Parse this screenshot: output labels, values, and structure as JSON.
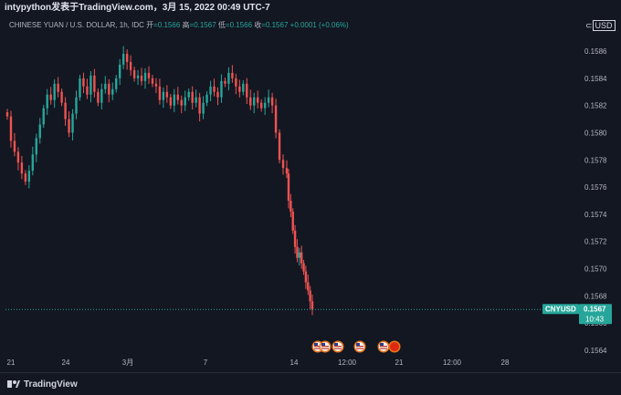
{
  "header": {
    "title": "intypython发表于TradingView.com，3月 15, 2022 00:49 UTC-7"
  },
  "legend": {
    "symbol": "CHINESE YUAN / U.S. DOLLAR, 1h, IDC",
    "open_label": "开",
    "open": "=0.1566",
    "high_label": "高",
    "high": "=0.1567",
    "low_label": "低",
    "low": "=0.1566",
    "close_label": "收",
    "close": "=0.1567",
    "change": "+0.0001 (+0.06%)"
  },
  "currency": {
    "label": "USD",
    "glyph": "⊂"
  },
  "price_tag": {
    "symbol": "CNYUSD",
    "price": "0.1567",
    "countdown": "10:43"
  },
  "footer": {
    "brand": "TradingView"
  },
  "colors": {
    "up": "#26a69a",
    "down": "#ef5350",
    "background": "#131722",
    "tag": "#26a69a"
  },
  "chart_data": {
    "type": "line",
    "title": "CHINESE YUAN / U.S. DOLLAR, 1h, IDC",
    "xlabel": "",
    "ylabel": "",
    "ylim": [
      0.15632,
      0.15878
    ],
    "y_ticks": [
      "0.1586",
      "0.1584",
      "0.1582",
      "0.1580",
      "0.1578",
      "0.1576",
      "0.1574",
      "0.1572",
      "0.1570",
      "0.1568",
      "0.1566",
      "0.1564"
    ],
    "x_ticks": [
      "21",
      "24",
      "3月",
      "7",
      "14",
      "12:00",
      "21",
      "12:00",
      "28"
    ],
    "grid": false,
    "last_value": 0.1567,
    "series": [
      {
        "name": "CNYUSD",
        "type": "candlestick",
        "values": [
          0.15812,
          0.15794,
          0.15786,
          0.15778,
          0.1577,
          0.15764,
          0.15772,
          0.15784,
          0.15796,
          0.15806,
          0.15818,
          0.15828,
          0.15824,
          0.15836,
          0.1583,
          0.15822,
          0.1581,
          0.158,
          0.15814,
          0.15826,
          0.1584,
          0.15834,
          0.15828,
          0.15842,
          0.1583,
          0.15822,
          0.15832,
          0.15836,
          0.15828,
          0.15832,
          0.1584,
          0.1585,
          0.15858,
          0.15852,
          0.15846,
          0.1584,
          0.15842,
          0.15838,
          0.15844,
          0.1584,
          0.15836,
          0.15834,
          0.15824,
          0.1583,
          0.15826,
          0.1582,
          0.15828,
          0.15824,
          0.1582,
          0.15826,
          0.1583,
          0.15822,
          0.15826,
          0.15814,
          0.15822,
          0.15828,
          0.15834,
          0.1583,
          0.15826,
          0.15838,
          0.15836,
          0.15844,
          0.1584,
          0.15834,
          0.1583,
          0.15836,
          0.15826,
          0.1582,
          0.15826,
          0.15822,
          0.15818,
          0.15822,
          0.15826,
          0.1582,
          0.158,
          0.1578,
          0.15774,
          0.1577,
          0.1575,
          0.15742,
          0.15728,
          0.15716,
          0.15708,
          0.15712,
          0.15704,
          0.15698,
          0.1569,
          0.15684,
          0.15676,
          0.1567
        ]
      }
    ]
  },
  "events": {
    "count": 6
  }
}
